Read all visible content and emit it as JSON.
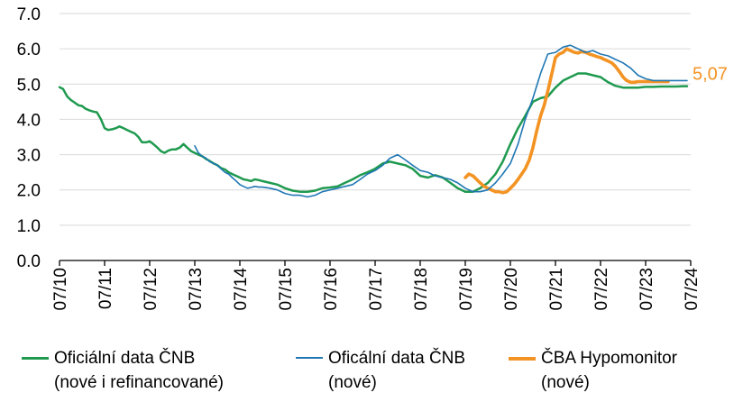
{
  "chart_data": {
    "type": "line",
    "yticks": [
      "0.0",
      "1.0",
      "2.0",
      "3.0",
      "4.0",
      "5.0",
      "6.0",
      "7.0"
    ],
    "ylim": [
      0,
      7
    ],
    "xticks": [
      "07/10",
      "07/11",
      "07/12",
      "07/13",
      "07/14",
      "07/15",
      "07/16",
      "07/17",
      "07/18",
      "07/19",
      "07/20",
      "07/21",
      "07/22",
      "07/23",
      "07/24"
    ],
    "xlim": [
      2010.5,
      2024.5
    ],
    "grid": "horizontal",
    "legend_position": "bottom",
    "end_label": "5,07",
    "colors": {
      "cnb_all": "#1f9a4f",
      "cnb_new": "#1f77b4",
      "cba": "#f39323",
      "grid": "#d9d9d9",
      "axis": "#000000"
    },
    "series": [
      {
        "name": "Oficiální data ČNB\n(nové i refinancované)",
        "key": "cnb_all",
        "x": [
          2010.5,
          2010.58,
          2010.67,
          2010.75,
          2010.83,
          2010.92,
          2011.0,
          2011.08,
          2011.17,
          2011.25,
          2011.33,
          2011.42,
          2011.5,
          2011.58,
          2011.67,
          2011.75,
          2011.83,
          2011.92,
          2012.0,
          2012.08,
          2012.17,
          2012.25,
          2012.33,
          2012.42,
          2012.5,
          2012.58,
          2012.67,
          2012.75,
          2012.83,
          2012.92,
          2013.0,
          2013.08,
          2013.17,
          2013.25,
          2013.33,
          2013.42,
          2013.5,
          2013.58,
          2013.67,
          2013.75,
          2013.83,
          2013.92,
          2014.0,
          2014.08,
          2014.17,
          2014.25,
          2014.33,
          2014.42,
          2014.5,
          2014.58,
          2014.67,
          2014.75,
          2014.83,
          2014.92,
          2015.0,
          2015.17,
          2015.33,
          2015.5,
          2015.67,
          2015.83,
          2016.0,
          2016.17,
          2016.33,
          2016.5,
          2016.67,
          2016.83,
          2017.0,
          2017.17,
          2017.33,
          2017.5,
          2017.67,
          2017.83,
          2018.0,
          2018.17,
          2018.33,
          2018.5,
          2018.67,
          2018.83,
          2019.0,
          2019.17,
          2019.33,
          2019.5,
          2019.67,
          2019.83,
          2020.0,
          2020.17,
          2020.33,
          2020.5,
          2020.67,
          2020.83,
          2021.0,
          2021.17,
          2021.33,
          2021.5,
          2021.67,
          2021.83,
          2022.0,
          2022.17,
          2022.33,
          2022.5,
          2022.67,
          2022.83,
          2023.0,
          2023.17,
          2023.33,
          2023.5,
          2023.67,
          2023.83,
          2024.0,
          2024.17,
          2024.33,
          2024.42
        ],
        "values": [
          4.91,
          4.86,
          4.65,
          4.55,
          4.48,
          4.4,
          4.38,
          4.3,
          4.25,
          4.22,
          4.2,
          4.0,
          3.75,
          3.7,
          3.72,
          3.75,
          3.8,
          3.75,
          3.7,
          3.65,
          3.6,
          3.5,
          3.35,
          3.35,
          3.38,
          3.3,
          3.2,
          3.1,
          3.05,
          3.12,
          3.15,
          3.15,
          3.2,
          3.3,
          3.2,
          3.1,
          3.05,
          3.0,
          2.95,
          2.88,
          2.82,
          2.75,
          2.7,
          2.62,
          2.58,
          2.5,
          2.45,
          2.4,
          2.35,
          2.3,
          2.28,
          2.25,
          2.3,
          2.28,
          2.25,
          2.2,
          2.15,
          2.05,
          1.98,
          1.95,
          1.95,
          1.98,
          2.05,
          2.07,
          2.1,
          2.2,
          2.3,
          2.42,
          2.5,
          2.6,
          2.75,
          2.8,
          2.75,
          2.7,
          2.6,
          2.4,
          2.35,
          2.42,
          2.35,
          2.2,
          2.05,
          1.95,
          1.95,
          2.05,
          2.2,
          2.45,
          2.8,
          3.3,
          3.75,
          4.1,
          4.5,
          4.6,
          4.65,
          4.9,
          5.1,
          5.2,
          5.3,
          5.3,
          5.25,
          5.2,
          5.05,
          4.95,
          4.9,
          4.9,
          4.9,
          4.92,
          4.92,
          4.93,
          4.93,
          4.93,
          4.94,
          4.94
        ]
      },
      {
        "name": "Oficální data ČNB\n(nové)",
        "key": "cnb_new",
        "x": [
          2013.5,
          2013.58,
          2013.67,
          2013.75,
          2013.83,
          2013.92,
          2014.0,
          2014.08,
          2014.17,
          2014.25,
          2014.33,
          2014.42,
          2014.5,
          2014.58,
          2014.67,
          2014.75,
          2014.83,
          2014.92,
          2015.0,
          2015.17,
          2015.33,
          2015.5,
          2015.67,
          2015.83,
          2016.0,
          2016.17,
          2016.33,
          2016.5,
          2016.67,
          2016.83,
          2017.0,
          2017.17,
          2017.33,
          2017.5,
          2017.67,
          2017.83,
          2018.0,
          2018.17,
          2018.33,
          2018.5,
          2018.67,
          2018.83,
          2019.0,
          2019.17,
          2019.33,
          2019.5,
          2019.67,
          2019.83,
          2020.0,
          2020.17,
          2020.33,
          2020.5,
          2020.67,
          2020.83,
          2021.0,
          2021.17,
          2021.33,
          2021.5,
          2021.67,
          2021.83,
          2022.0,
          2022.17,
          2022.33,
          2022.5,
          2022.67,
          2022.83,
          2023.0,
          2023.17,
          2023.33,
          2023.5,
          2023.67,
          2023.83,
          2024.0,
          2024.17,
          2024.33,
          2024.42
        ],
        "values": [
          3.25,
          3.05,
          2.95,
          2.9,
          2.8,
          2.75,
          2.7,
          2.6,
          2.5,
          2.45,
          2.35,
          2.25,
          2.15,
          2.1,
          2.05,
          2.07,
          2.1,
          2.08,
          2.08,
          2.05,
          2.0,
          1.9,
          1.85,
          1.85,
          1.8,
          1.85,
          1.95,
          2.0,
          2.05,
          2.1,
          2.15,
          2.3,
          2.45,
          2.55,
          2.7,
          2.9,
          3.0,
          2.85,
          2.7,
          2.55,
          2.5,
          2.4,
          2.35,
          2.3,
          2.2,
          2.05,
          1.95,
          1.95,
          2.0,
          2.2,
          2.45,
          2.75,
          3.3,
          4.0,
          4.6,
          5.3,
          5.85,
          5.9,
          6.05,
          6.1,
          6.0,
          5.9,
          5.95,
          5.85,
          5.8,
          5.7,
          5.6,
          5.45,
          5.25,
          5.15,
          5.1,
          5.1,
          5.1,
          5.1,
          5.1,
          5.1
        ]
      },
      {
        "name": "ČBA Hypomonitor\n(nové)",
        "key": "cba",
        "x": [
          2019.5,
          2019.58,
          2019.67,
          2019.75,
          2019.83,
          2019.92,
          2020.0,
          2020.08,
          2020.17,
          2020.25,
          2020.33,
          2020.42,
          2020.5,
          2020.58,
          2020.67,
          2020.75,
          2020.83,
          2020.92,
          2021.0,
          2021.08,
          2021.17,
          2021.25,
          2021.33,
          2021.42,
          2021.5,
          2021.58,
          2021.67,
          2021.75,
          2021.83,
          2021.92,
          2022.0,
          2022.08,
          2022.17,
          2022.25,
          2022.33,
          2022.42,
          2022.5,
          2022.58,
          2022.67,
          2022.75,
          2022.83,
          2022.92,
          2023.0,
          2023.08,
          2023.17,
          2023.25,
          2023.33,
          2023.42,
          2023.5,
          2023.58,
          2023.67,
          2023.75,
          2023.83,
          2023.92,
          2024.0
        ],
        "values": [
          2.35,
          2.45,
          2.4,
          2.3,
          2.2,
          2.1,
          2.05,
          2.0,
          1.95,
          1.95,
          1.92,
          1.95,
          2.05,
          2.15,
          2.3,
          2.45,
          2.6,
          2.85,
          3.2,
          3.65,
          4.1,
          4.4,
          4.8,
          5.3,
          5.75,
          5.85,
          5.9,
          6.0,
          5.95,
          5.9,
          5.88,
          5.92,
          5.9,
          5.85,
          5.82,
          5.78,
          5.75,
          5.7,
          5.65,
          5.6,
          5.5,
          5.35,
          5.2,
          5.1,
          5.05,
          5.05,
          5.07,
          5.07,
          5.07,
          5.07,
          5.07,
          5.07,
          5.07,
          5.07,
          5.07
        ]
      }
    ]
  }
}
